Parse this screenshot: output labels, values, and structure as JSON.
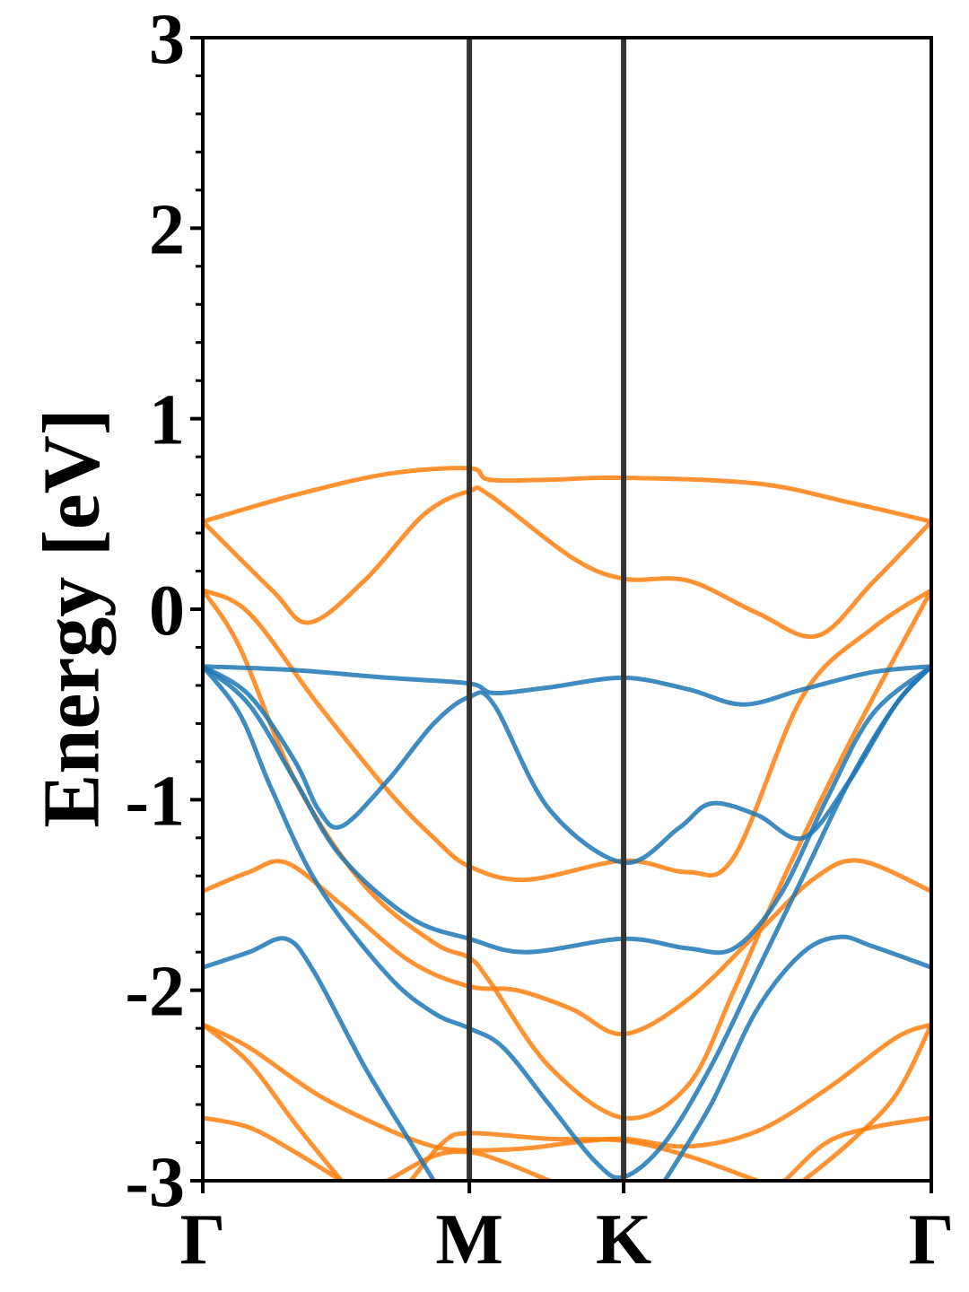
{
  "chart_data": {
    "type": "line",
    "title": "",
    "ylabel": "Energy [eV]",
    "xlabel": "",
    "ylim": [
      -3,
      3
    ],
    "yticks": [
      {
        "value": 3,
        "label": "3"
      },
      {
        "value": 2,
        "label": "2"
      },
      {
        "value": 1,
        "label": "1"
      },
      {
        "value": 0,
        "label": "0"
      },
      {
        "value": -1,
        "label": "-1"
      },
      {
        "value": -2,
        "label": "-2"
      },
      {
        "value": -3,
        "label": "-3"
      }
    ],
    "yminor_step": 0.2,
    "kpoints": [
      {
        "label": "Γ",
        "position": 0.0
      },
      {
        "label": "M",
        "position": 0.577
      },
      {
        "label": "K",
        "position": 0.911
      },
      {
        "label": "Γ",
        "position": 1.577
      }
    ],
    "colors": {
      "spin_a": "#1f77b4",
      "spin_b": "#ff7f0e",
      "kline": "#333333"
    },
    "series": [
      {
        "color": "#ff7f0e",
        "points": [
          [
            0,
            0.46
          ],
          [
            0.2,
            0.6
          ],
          [
            0.4,
            0.71
          ],
          [
            0.577,
            0.74
          ],
          [
            0.62,
            0.68
          ],
          [
            0.75,
            0.68
          ],
          [
            0.911,
            0.69
          ],
          [
            1.2,
            0.66
          ],
          [
            1.4,
            0.56
          ],
          [
            1.577,
            0.46
          ]
        ]
      },
      {
        "color": "#ff7f0e",
        "points": [
          [
            0,
            0.46
          ],
          [
            0.15,
            0.1
          ],
          [
            0.23,
            -0.07
          ],
          [
            0.35,
            0.15
          ],
          [
            0.48,
            0.5
          ],
          [
            0.577,
            0.62
          ],
          [
            0.62,
            0.6
          ],
          [
            0.8,
            0.27
          ],
          [
            0.911,
            0.16
          ],
          [
            1.05,
            0.15
          ],
          [
            1.2,
            -0.02
          ],
          [
            1.33,
            -0.14
          ],
          [
            1.45,
            0.14
          ],
          [
            1.577,
            0.46
          ]
        ]
      },
      {
        "color": "#ff7f0e",
        "points": [
          [
            0,
            0.1
          ],
          [
            0.1,
            -0.02
          ],
          [
            0.25,
            -0.5
          ],
          [
            0.4,
            -0.95
          ],
          [
            0.5,
            -1.2
          ],
          [
            0.577,
            -1.35
          ],
          [
            0.7,
            -1.42
          ],
          [
            0.911,
            -1.32
          ],
          [
            1.05,
            -1.38
          ],
          [
            1.15,
            -1.3
          ],
          [
            1.3,
            -0.45
          ],
          [
            1.45,
            -0.1
          ],
          [
            1.577,
            0.1
          ]
        ]
      },
      {
        "color": "#ff7f0e",
        "points": [
          [
            0,
            0.1
          ],
          [
            0.08,
            -0.2
          ],
          [
            0.2,
            -0.9
          ],
          [
            0.35,
            -1.45
          ],
          [
            0.5,
            -1.75
          ],
          [
            0.577,
            -1.83
          ],
          [
            0.62,
            -1.95
          ],
          [
            0.75,
            -2.4
          ],
          [
            0.911,
            -2.67
          ],
          [
            1.05,
            -2.5
          ],
          [
            1.15,
            -2.0
          ],
          [
            1.25,
            -1.45
          ],
          [
            1.4,
            -0.7
          ],
          [
            1.577,
            0.1
          ]
        ]
      },
      {
        "color": "#ff7f0e",
        "points": [
          [
            0,
            -1.48
          ],
          [
            0.1,
            -1.38
          ],
          [
            0.18,
            -1.33
          ],
          [
            0.3,
            -1.55
          ],
          [
            0.45,
            -1.85
          ],
          [
            0.577,
            -1.98
          ],
          [
            0.68,
            -2.0
          ],
          [
            0.8,
            -2.1
          ],
          [
            0.911,
            -2.23
          ],
          [
            1.05,
            -2.05
          ],
          [
            1.2,
            -1.7
          ],
          [
            1.32,
            -1.42
          ],
          [
            1.42,
            -1.32
          ],
          [
            1.577,
            -1.48
          ]
        ]
      },
      {
        "color": "#ff7f0e",
        "points": [
          [
            0,
            -2.18
          ],
          [
            0.1,
            -2.3
          ],
          [
            0.25,
            -2.55
          ],
          [
            0.4,
            -2.73
          ],
          [
            0.5,
            -2.82
          ],
          [
            0.577,
            -2.84
          ],
          [
            0.7,
            -2.83
          ],
          [
            0.8,
            -2.8
          ],
          [
            0.911,
            -2.78
          ],
          [
            1.05,
            -2.82
          ],
          [
            1.2,
            -2.74
          ],
          [
            1.35,
            -2.52
          ],
          [
            1.5,
            -2.25
          ],
          [
            1.577,
            -2.18
          ]
        ]
      },
      {
        "color": "#ff7f0e",
        "points": [
          [
            0,
            -2.18
          ],
          [
            0.1,
            -2.38
          ],
          [
            0.2,
            -2.7
          ],
          [
            0.3,
            -3.0
          ]
        ]
      },
      {
        "color": "#ff7f0e",
        "points": [
          [
            0,
            -2.67
          ],
          [
            0.1,
            -2.72
          ],
          [
            0.2,
            -2.85
          ],
          [
            0.3,
            -3.0
          ]
        ]
      },
      {
        "color": "#ff7f0e",
        "points": [
          [
            0.4,
            -3.0
          ],
          [
            0.5,
            -2.87
          ],
          [
            0.577,
            -2.85
          ],
          [
            0.65,
            -2.9
          ],
          [
            0.75,
            -3.0
          ]
        ]
      },
      {
        "color": "#ff7f0e",
        "points": [
          [
            0.45,
            -3.0
          ],
          [
            0.52,
            -2.8
          ],
          [
            0.577,
            -2.75
          ],
          [
            0.75,
            -2.78
          ],
          [
            0.911,
            -2.79
          ],
          [
            1.05,
            -2.87
          ],
          [
            1.2,
            -3.0
          ]
        ]
      },
      {
        "color": "#ff7f0e",
        "points": [
          [
            1.3,
            -3.0
          ],
          [
            1.4,
            -2.8
          ],
          [
            1.5,
            -2.55
          ],
          [
            1.577,
            -2.18
          ]
        ]
      },
      {
        "color": "#ff7f0e",
        "points": [
          [
            1.26,
            -3.0
          ],
          [
            1.35,
            -2.8
          ],
          [
            1.45,
            -2.72
          ],
          [
            1.577,
            -2.67
          ]
        ]
      },
      {
        "color": "#1f77b4",
        "points": [
          [
            0,
            -0.3
          ],
          [
            0.2,
            -0.32
          ],
          [
            0.4,
            -0.36
          ],
          [
            0.577,
            -0.39
          ],
          [
            0.63,
            -0.44
          ],
          [
            0.75,
            -0.41
          ],
          [
            0.911,
            -0.36
          ],
          [
            1.05,
            -0.42
          ],
          [
            1.17,
            -0.5
          ],
          [
            1.3,
            -0.42
          ],
          [
            1.45,
            -0.33
          ],
          [
            1.577,
            -0.3
          ]
        ]
      },
      {
        "color": "#1f77b4",
        "points": [
          [
            0,
            -0.3
          ],
          [
            0.1,
            -0.45
          ],
          [
            0.2,
            -0.8
          ],
          [
            0.25,
            -1.05
          ],
          [
            0.3,
            -1.14
          ],
          [
            0.4,
            -0.9
          ],
          [
            0.5,
            -0.6
          ],
          [
            0.577,
            -0.46
          ],
          [
            0.63,
            -0.5
          ],
          [
            0.75,
            -1.05
          ],
          [
            0.911,
            -1.33
          ],
          [
            1.03,
            -1.15
          ],
          [
            1.1,
            -1.02
          ],
          [
            1.2,
            -1.08
          ],
          [
            1.3,
            -1.2
          ],
          [
            1.4,
            -0.9
          ],
          [
            1.5,
            -0.5
          ],
          [
            1.577,
            -0.3
          ]
        ]
      },
      {
        "color": "#1f77b4",
        "points": [
          [
            0,
            -0.3
          ],
          [
            0.1,
            -0.5
          ],
          [
            0.2,
            -0.9
          ],
          [
            0.3,
            -1.3
          ],
          [
            0.45,
            -1.62
          ],
          [
            0.577,
            -1.73
          ],
          [
            0.7,
            -1.8
          ],
          [
            0.911,
            -1.73
          ],
          [
            1.05,
            -1.78
          ],
          [
            1.15,
            -1.78
          ],
          [
            1.25,
            -1.5
          ],
          [
            1.35,
            -1.0
          ],
          [
            1.45,
            -0.55
          ],
          [
            1.577,
            -0.3
          ]
        ]
      },
      {
        "color": "#1f77b4",
        "points": [
          [
            0,
            -0.3
          ],
          [
            0.08,
            -0.55
          ],
          [
            0.15,
            -0.95
          ],
          [
            0.25,
            -1.45
          ],
          [
            0.4,
            -1.92
          ],
          [
            0.5,
            -2.12
          ],
          [
            0.577,
            -2.2
          ],
          [
            0.65,
            -2.3
          ],
          [
            0.75,
            -2.6
          ],
          [
            0.85,
            -2.9
          ],
          [
            0.911,
            -2.98
          ],
          [
            1.0,
            -2.8
          ],
          [
            1.1,
            -2.4
          ],
          [
            1.2,
            -1.9
          ],
          [
            1.3,
            -1.4
          ],
          [
            1.4,
            -0.9
          ],
          [
            1.5,
            -0.5
          ],
          [
            1.577,
            -0.3
          ]
        ]
      },
      {
        "color": "#1f77b4",
        "points": [
          [
            0,
            -1.88
          ],
          [
            0.1,
            -1.8
          ],
          [
            0.18,
            -1.73
          ],
          [
            0.24,
            -1.9
          ],
          [
            0.35,
            -2.4
          ],
          [
            0.45,
            -2.8
          ],
          [
            0.5,
            -3.0
          ]
        ]
      },
      {
        "color": "#1f77b4",
        "points": [
          [
            1.0,
            -3.0
          ],
          [
            1.1,
            -2.6
          ],
          [
            1.2,
            -2.1
          ],
          [
            1.3,
            -1.8
          ],
          [
            1.38,
            -1.72
          ],
          [
            1.45,
            -1.77
          ],
          [
            1.577,
            -1.88
          ]
        ]
      }
    ]
  }
}
